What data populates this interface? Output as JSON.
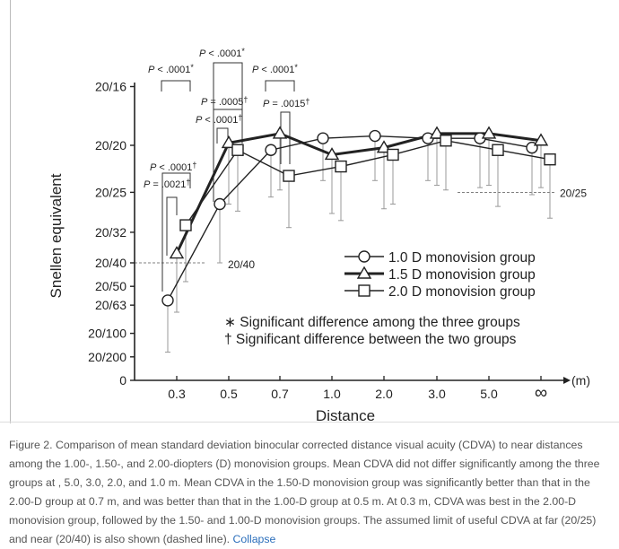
{
  "chart_data": {
    "type": "line",
    "title": "",
    "xlabel": "Distance",
    "x_unit": "(m)",
    "ylabel": "Snellen equivalent",
    "categories": [
      "0.3",
      "0.5",
      "0.7",
      "1.0",
      "2.0",
      "3.0",
      "5.0",
      "∞"
    ],
    "y_scale": "decimal visual acuity (linear)",
    "ylim": [
      0,
      1.25
    ],
    "y_ticks": [
      {
        "label": "20/16",
        "value": 1.25
      },
      {
        "label": "20/20",
        "value": 1.0
      },
      {
        "label": "20/25",
        "value": 0.8
      },
      {
        "label": "20/32",
        "value": 0.63
      },
      {
        "label": "20/40",
        "value": 0.5
      },
      {
        "label": "20/50",
        "value": 0.4
      },
      {
        "label": "20/63",
        "value": 0.32
      },
      {
        "label": "20/100",
        "value": 0.2
      },
      {
        "label": "20/200",
        "value": 0.1
      },
      {
        "label": "0",
        "value": 0
      }
    ],
    "series": [
      {
        "name": "1.0 D monovision group",
        "marker": "circle",
        "line": "thin",
        "values": [
          0.34,
          0.75,
          0.98,
          1.03,
          1.04,
          1.03,
          1.03,
          0.99
        ],
        "sd_lower": [
          0.12,
          0.5,
          0.78,
          0.85,
          0.85,
          0.85,
          0.82,
          0.79
        ]
      },
      {
        "name": "1.5 D monovision group",
        "marker": "triangle",
        "line": "thick",
        "values": [
          0.54,
          1.01,
          1.05,
          0.96,
          0.99,
          1.05,
          1.05,
          1.02
        ],
        "sd_lower": [
          0.29,
          0.75,
          0.81,
          0.71,
          0.73,
          0.83,
          0.83,
          0.82
        ]
      },
      {
        "name": "2.0 D monovision group",
        "marker": "square",
        "line": "thin",
        "values": [
          0.66,
          0.98,
          0.87,
          0.91,
          0.96,
          1.02,
          0.98,
          0.94
        ],
        "sd_lower": [
          0.42,
          0.72,
          0.65,
          0.68,
          0.75,
          0.81,
          0.74,
          0.69
        ]
      }
    ],
    "reference_lines": [
      {
        "label": "20/40",
        "value": 0.5,
        "style": "dashed",
        "region": "near"
      },
      {
        "label": "20/25",
        "value": 0.8,
        "style": "dashed",
        "region": "far"
      }
    ],
    "annotations": [
      {
        "text": "P < .0001",
        "mark": "*",
        "at": "0.3"
      },
      {
        "text": "P < .0001",
        "mark": "*",
        "at": "0.5"
      },
      {
        "text": "P < .0001",
        "mark": "*",
        "at": "0.7"
      },
      {
        "text": "P = .0005",
        "mark": "†",
        "at": "0.5"
      },
      {
        "text": "P = .0015",
        "mark": "†",
        "at": "0.7"
      },
      {
        "text": "P < .0001",
        "mark": "†",
        "at": "0.5"
      },
      {
        "text": "P < .0001",
        "mark": "†",
        "at": "0.3"
      },
      {
        "text": "P = .0021",
        "mark": "†",
        "at": "0.3"
      }
    ],
    "notes": [
      "∗ Significant difference among the three groups",
      "† Significant difference between the two groups"
    ],
    "legend_position": "center-right"
  },
  "caption": {
    "text": "Figure 2. Comparison of mean standard deviation binocular corrected distance visual acuity (CDVA) to near distances among the 1.00-, 1.50-, and 2.00-diopters (D) monovision groups. Mean CDVA did not differ significantly among the three groups at , 5.0, 3.0, 2.0, and 1.0 m. Mean CDVA in the 1.50-D monovision group was significantly better than that in the 2.00-D group at 0.7 m, and was better than that in the 1.00-D group at 0.5 m. At 0.3 m, CDVA was best in the 2.00-D monovision group, followed by the 1.50- and 1.00-D monovision groups. The assumed limit of useful CDVA at far (20/25) and near (20/40) is also shown (dashed line).",
    "collapse_label": "Collapse"
  }
}
